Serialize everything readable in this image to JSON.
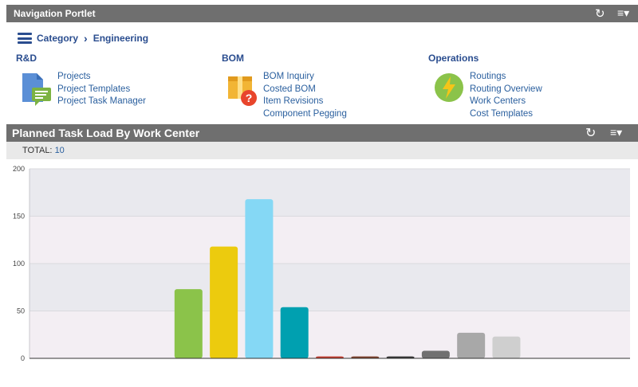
{
  "nav_portlet": {
    "title": "Navigation Portlet",
    "refresh_icon": "refresh-icon",
    "menu_icon": "menu-icon",
    "breadcrumb": {
      "category": "Category",
      "current": "Engineering"
    },
    "sections": [
      {
        "title": "R&D",
        "icon": "document-chat-icon",
        "links": [
          "Projects",
          "Project Templates",
          "Project Task Manager"
        ]
      },
      {
        "title": "BOM",
        "icon": "box-question-icon",
        "links": [
          "BOM Inquiry",
          "Costed BOM",
          "Item Revisions",
          "Component Pegging"
        ]
      },
      {
        "title": "Operations",
        "icon": "lightning-icon",
        "links": [
          "Routings",
          "Routing Overview",
          "Work Centers",
          "Cost Templates"
        ]
      }
    ]
  },
  "chart_portlet": {
    "title": "Planned Task Load By Work Center",
    "total_label": "TOTAL:",
    "total_value": "10"
  },
  "chart_data": {
    "type": "bar",
    "ylim": [
      0,
      200
    ],
    "yticks": [
      0,
      50,
      100,
      150,
      200
    ],
    "grid": true,
    "categories": [
      "",
      "",
      "",
      "",
      "",
      "",
      "",
      "",
      "",
      "",
      "",
      "",
      "",
      "",
      "",
      "",
      ""
    ],
    "values": [
      0,
      0,
      0,
      0,
      73,
      118,
      168,
      54,
      2,
      2,
      2,
      8,
      27,
      23,
      0,
      0,
      0
    ],
    "colors": [
      "#8bc34a",
      "#8bc34a",
      "#8bc34a",
      "#8bc34a",
      "#8bc34a",
      "#eccb0e",
      "#85d8f5",
      "#00a0b0",
      "#c0392b",
      "#7b3f2a",
      "#333333",
      "#707070",
      "#a8a8a8",
      "#cfcfcf",
      "#cfcfcf",
      "#cfcfcf",
      "#cfcfcf"
    ]
  }
}
